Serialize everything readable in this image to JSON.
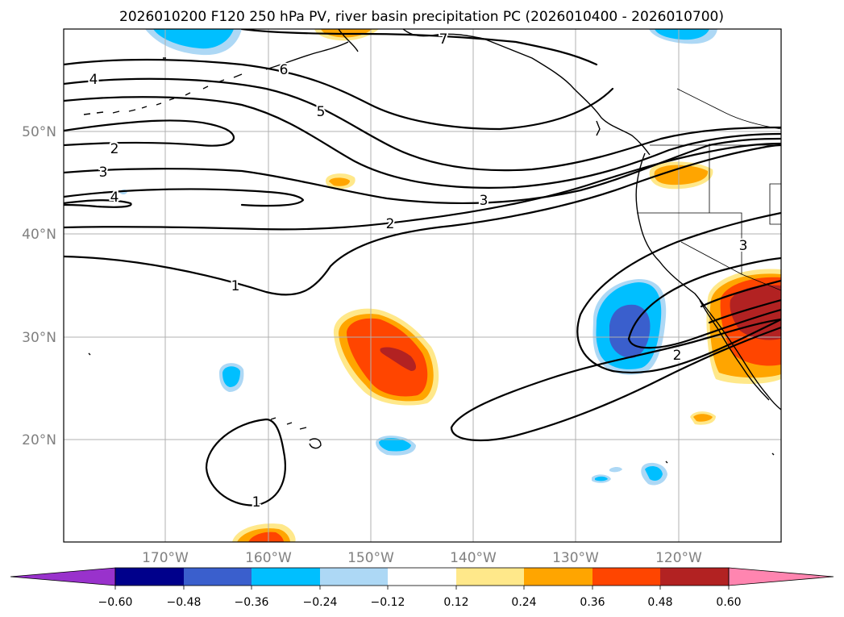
{
  "title": "2026010200 F120 250 hPa PV, river basin precipitation PC (2026010400 - 2026010700)",
  "latitude_labels": [
    "50°N",
    "40°N",
    "30°N",
    "20°N"
  ],
  "longitude_labels": [
    "170°W",
    "160°W",
    "150°W",
    "140°W",
    "130°W",
    "120°W"
  ],
  "contour_labels": [
    "7",
    "6",
    "5",
    "4",
    "4",
    "3",
    "3",
    "3",
    "2",
    "2",
    "2",
    "1",
    "1"
  ],
  "colorbar": {
    "ticks": [
      "−0.60",
      "−0.48",
      "−0.36",
      "−0.24",
      "−0.12",
      "0.12",
      "0.24",
      "0.36",
      "0.48",
      "0.60"
    ],
    "colors": {
      "under": "#9932cc",
      "c1": "#00008b",
      "c2": "#3a5fcd",
      "c3": "#00bfff",
      "c4": "#add8f5",
      "c5": "#ffffff",
      "c6": "#ffe88a",
      "c7": "#ffa500",
      "c8": "#ff4500",
      "c9": "#b22222",
      "over": "#ff85b0"
    }
  }
}
